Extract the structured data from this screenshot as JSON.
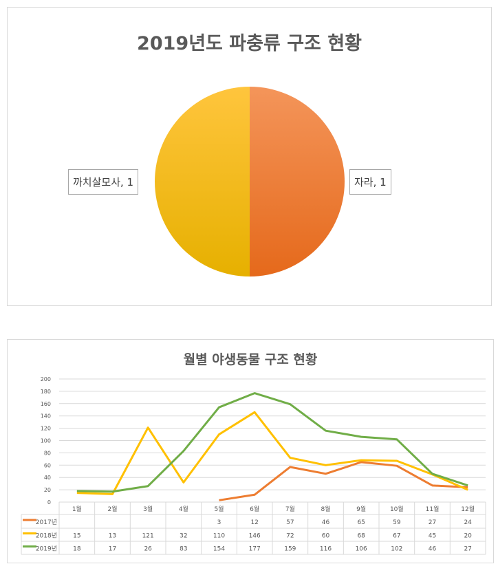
{
  "chart_data": [
    {
      "type": "pie",
      "title": "2019년도 파충류 구조 현황",
      "slices": [
        {
          "label": "자라",
          "value": 1,
          "data_label": "자라, 1",
          "color": "#ED7D31"
        },
        {
          "label": "까치살모사",
          "value": 1,
          "data_label": "까치살모사, 1",
          "color": "#FFC000"
        }
      ]
    },
    {
      "type": "line",
      "title": "월별 야생동물 구조 현황",
      "categories": [
        "1월",
        "2월",
        "3월",
        "4월",
        "5월",
        "6월",
        "7월",
        "8월",
        "9월",
        "10월",
        "11월",
        "12월"
      ],
      "ylim": [
        0,
        200
      ],
      "yticks": [
        0,
        20,
        40,
        60,
        80,
        100,
        120,
        140,
        160,
        180,
        200
      ],
      "grid": true,
      "legend": "data-table",
      "series": [
        {
          "name": "2017년",
          "color": "#ED7D31",
          "values": [
            null,
            null,
            null,
            null,
            3,
            12,
            57,
            46,
            65,
            59,
            27,
            24
          ]
        },
        {
          "name": "2018년",
          "color": "#FFC000",
          "values": [
            15,
            13,
            121,
            32,
            110,
            146,
            72,
            60,
            68,
            67,
            45,
            20
          ]
        },
        {
          "name": "2019년",
          "color": "#70AD47",
          "values": [
            18,
            17,
            26,
            83,
            154,
            177,
            159,
            116,
            106,
            102,
            46,
            27
          ]
        }
      ]
    }
  ]
}
